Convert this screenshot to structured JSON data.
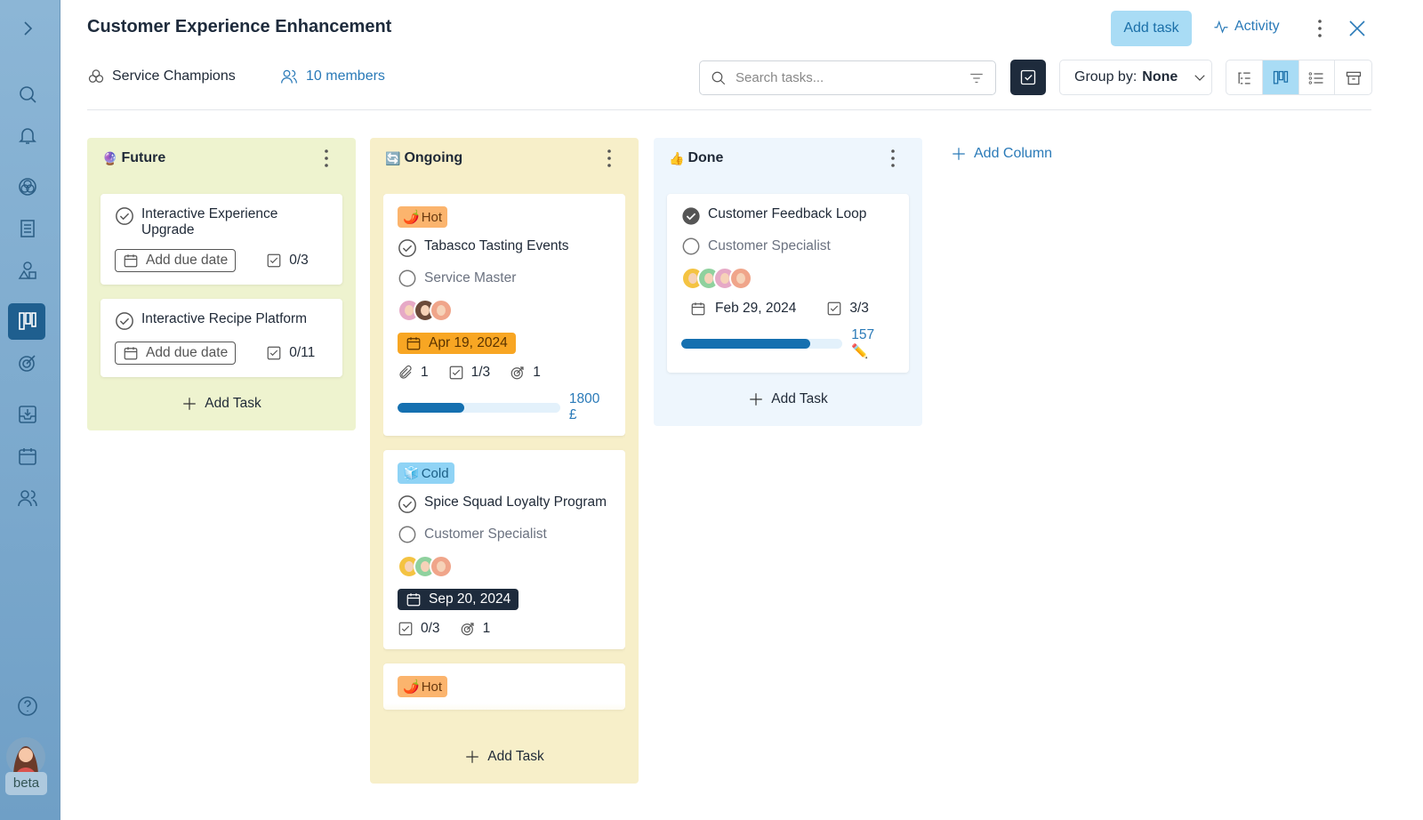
{
  "header": {
    "title": "Customer Experience Enhancement",
    "add_task": "Add task",
    "activity": "Activity",
    "team": "Service Champions",
    "members": "10 members",
    "search_placeholder": "Search tasks...",
    "group_by_label": "Group by:",
    "group_by_value": "None"
  },
  "sidebar": {
    "badge": "beta"
  },
  "columns": [
    {
      "icon": "🔮",
      "title": "Future",
      "background": "#eef3cf",
      "add": "Add Task",
      "cards": [
        {
          "title": "Interactive Experience Upgrade",
          "due": {
            "text": "Add due date",
            "style": "outline"
          },
          "checklist": "0/3"
        },
        {
          "title": "Interactive Recipe Platform",
          "due": {
            "text": "Add due date",
            "style": "outline"
          },
          "checklist": "0/11"
        }
      ]
    },
    {
      "icon": "🔄",
      "title": "Ongoing",
      "background": "#f7efc9",
      "add": "Add Task",
      "cards": [
        {
          "tag": {
            "icon": "🌶️",
            "label": "Hot",
            "style": "hot"
          },
          "title": "Tabasco Tasting Events",
          "assignee": "Service Master",
          "avatars": [
            "#e6a9c6",
            "#6b4a3a",
            "#f0a58a"
          ],
          "due": {
            "text": "Apr 19, 2024",
            "style": "orange"
          },
          "attachments": 1,
          "checklist": "1/3",
          "goals": 1,
          "progress": 41,
          "amount": "1800 £"
        },
        {
          "tag": {
            "icon": "🧊",
            "label": "Cold",
            "style": "cold"
          },
          "title": "Spice Squad Loyalty Program",
          "assignee": "Customer Specialist",
          "avatars": [
            "#f4c342",
            "#8fd19e",
            "#f0a58a"
          ],
          "due": {
            "text": "Sep 20, 2024",
            "style": "dark"
          },
          "checklist": "0/3",
          "goals": 1
        },
        {
          "tag": {
            "icon": "🌶️",
            "label": "Hot",
            "style": "hot"
          }
        }
      ]
    },
    {
      "icon": "👍",
      "title": "Done",
      "background": "#eef6fd",
      "add": "Add Task",
      "cards": [
        {
          "title": "Customer Feedback Loop",
          "done": true,
          "assignee": "Customer Specialist",
          "avatars": [
            "#f4c342",
            "#8fd19e",
            "#e6a9c6",
            "#f0a58a"
          ],
          "due": {
            "text": "Feb 29, 2024",
            "style": "plain"
          },
          "checklist": "3/3",
          "progress": 80,
          "amount": "157 ✏️"
        }
      ]
    }
  ],
  "add_column": "Add Column"
}
